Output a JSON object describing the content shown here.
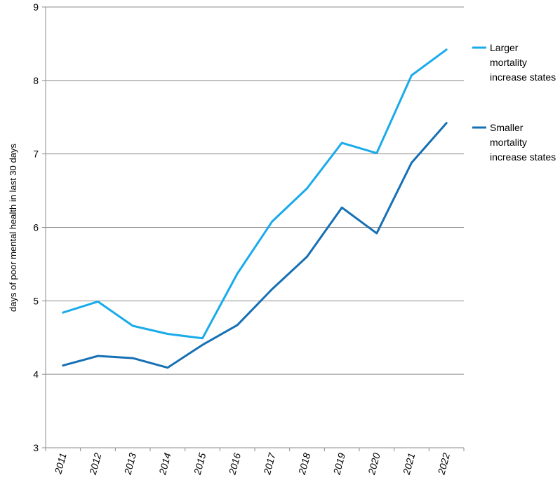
{
  "chart_data": {
    "type": "line",
    "title": "",
    "xlabel": "",
    "ylabel": "days of poor mental health in last 30 days",
    "categories": [
      "2011",
      "2012",
      "2013",
      "2014",
      "2015",
      "2016",
      "2017",
      "2018",
      "2019",
      "2020",
      "2021",
      "2022"
    ],
    "ylim": [
      3,
      9
    ],
    "yticks": [
      "3",
      "4",
      "5",
      "6",
      "7",
      "8",
      "9"
    ],
    "grid": true,
    "legend_position": "right",
    "series": [
      {
        "name": "Larger mortality increase states",
        "legend_lines": [
          "Larger",
          "mortality",
          "increase states"
        ],
        "color": "#1aabeb",
        "values": [
          4.84,
          4.99,
          4.66,
          4.55,
          4.49,
          5.37,
          6.08,
          6.53,
          7.15,
          7.01,
          8.07,
          8.42
        ]
      },
      {
        "name": "Smaller mortality increase states",
        "legend_lines": [
          "Smaller",
          "mortality",
          "increase states"
        ],
        "color": "#1670b4",
        "values": [
          4.12,
          4.25,
          4.22,
          4.09,
          4.4,
          4.67,
          5.16,
          5.6,
          6.27,
          5.92,
          6.88,
          7.42
        ]
      }
    ]
  }
}
